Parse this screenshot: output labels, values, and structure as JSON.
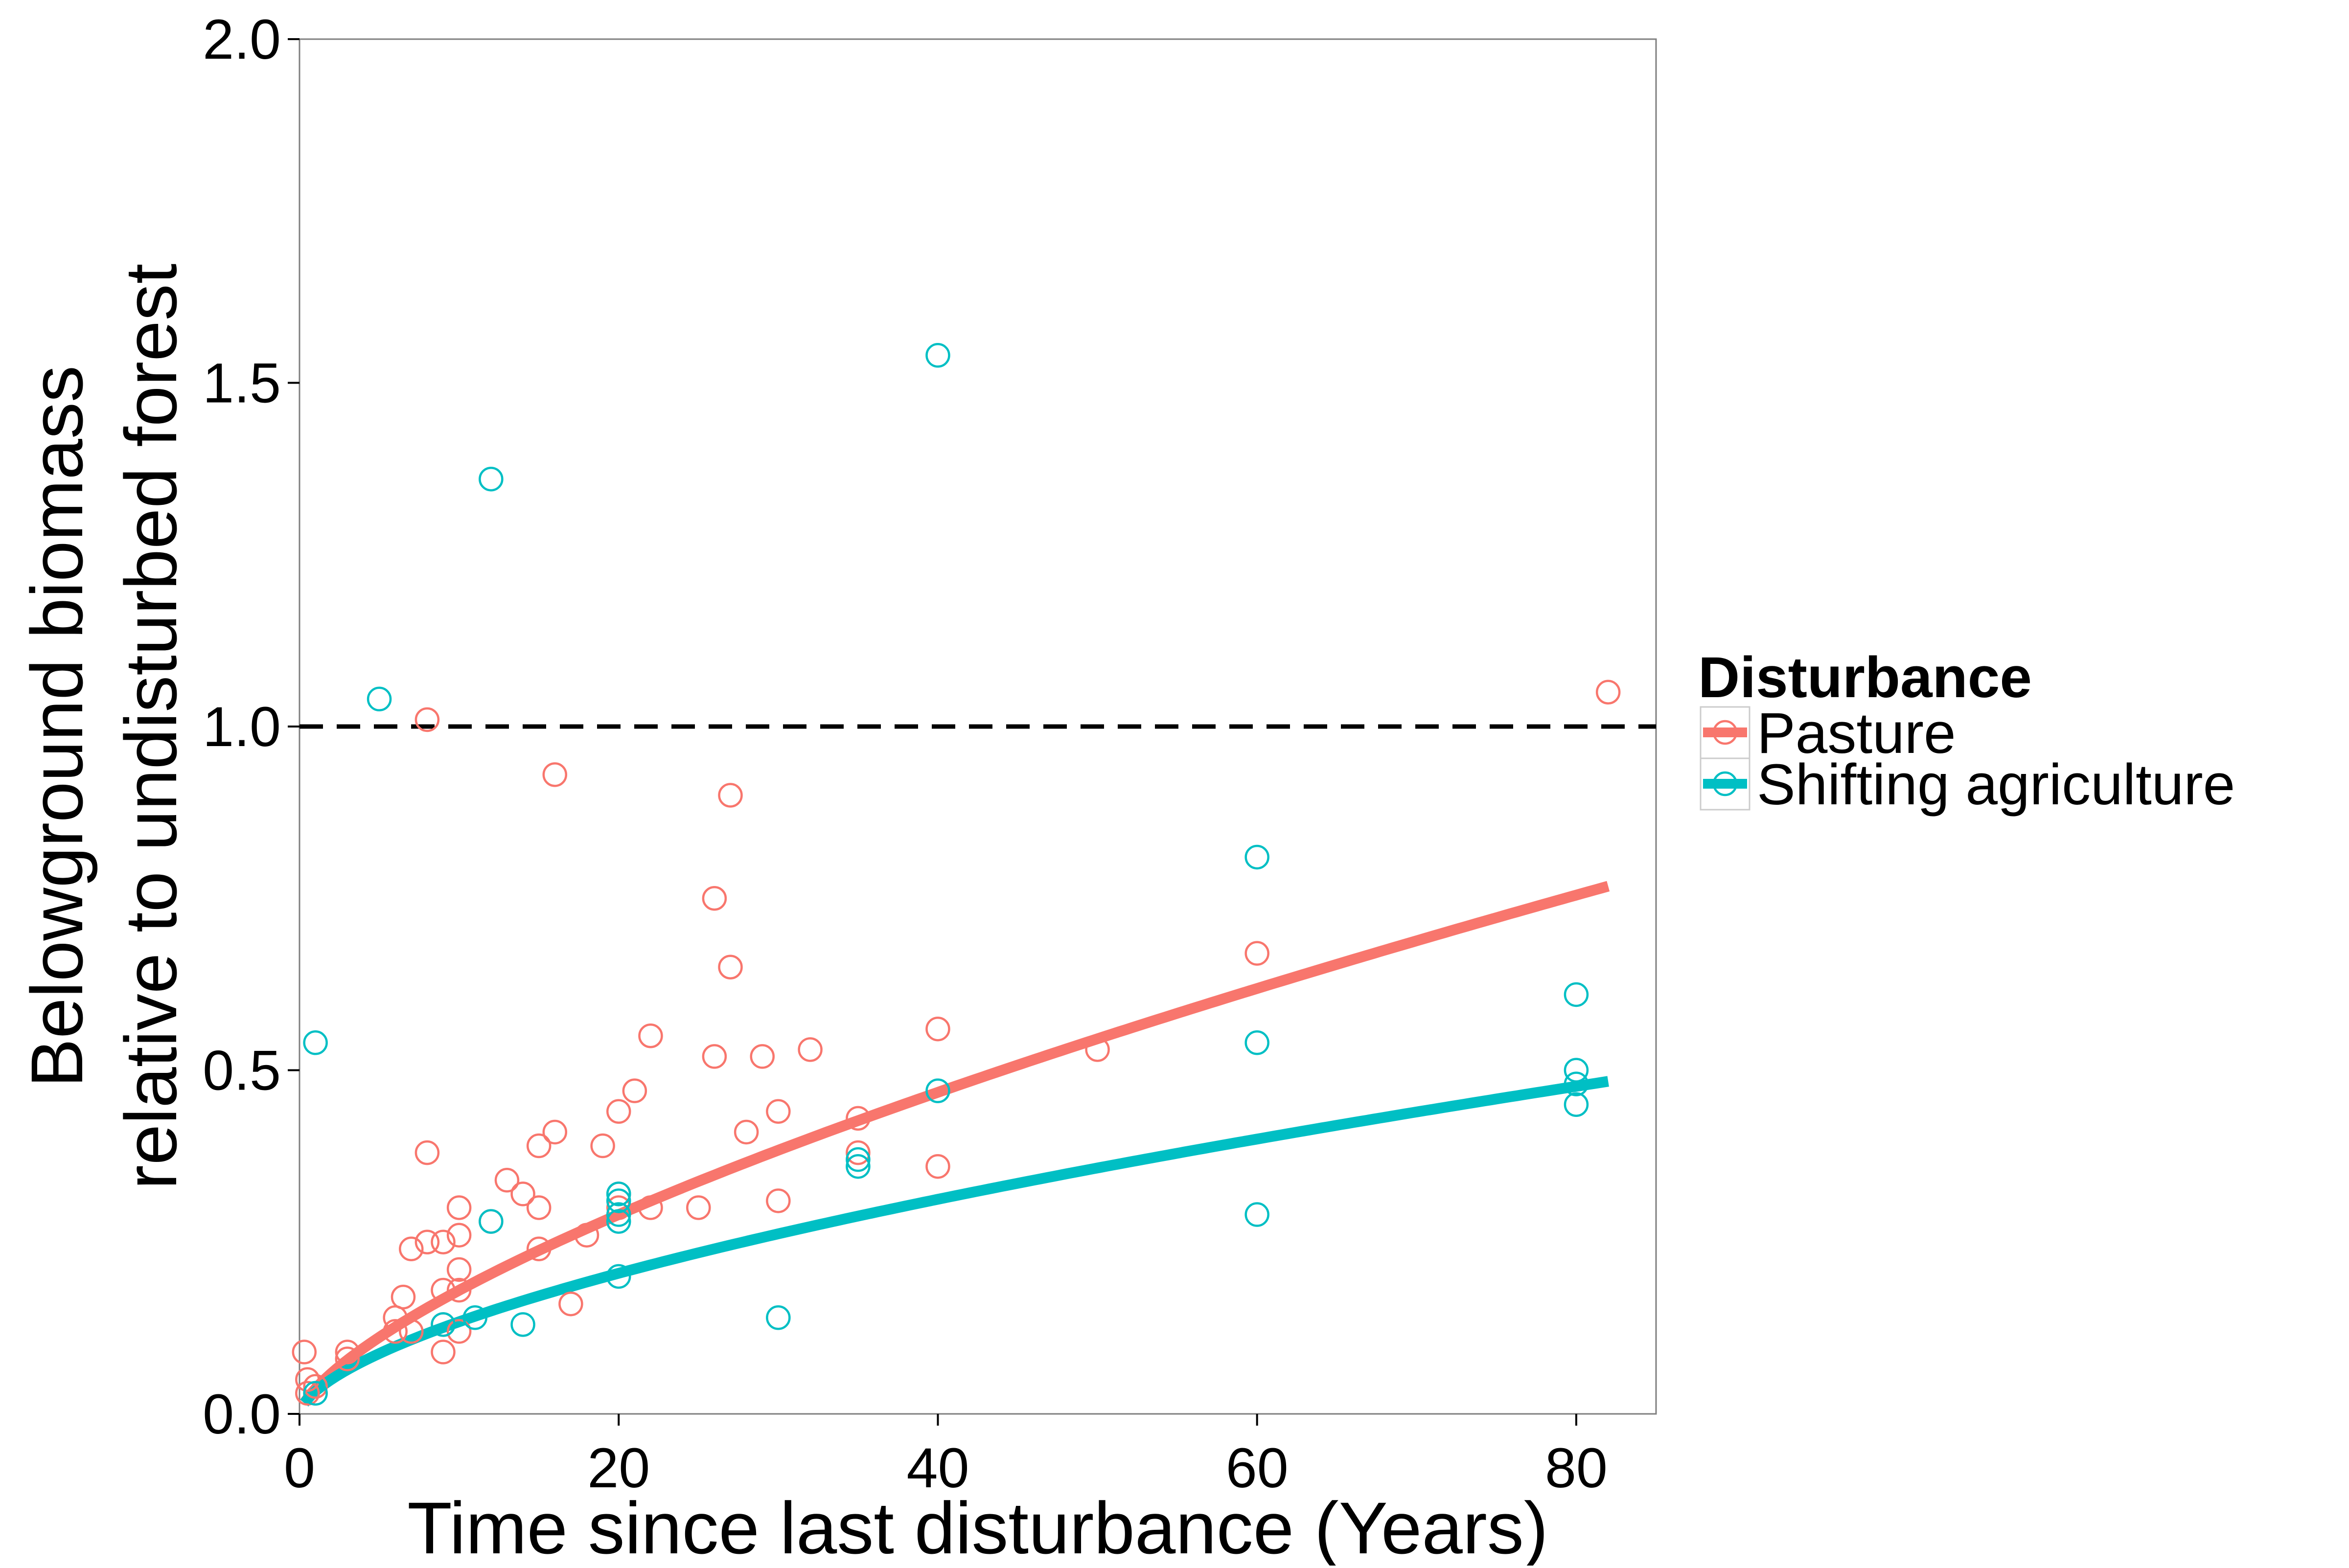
{
  "chart_data": {
    "type": "scatter",
    "title": "",
    "xlabel": "Time since last disturbance (Years)",
    "ylabel_lines": [
      "Belowground biomass",
      "relative to undisturbed forest"
    ],
    "xlim": [
      0,
      85
    ],
    "ylim": [
      0,
      2
    ],
    "x_ticks": [
      0,
      20,
      40,
      60,
      80
    ],
    "x_tick_labels": [
      "0",
      "20",
      "40",
      "60",
      "80"
    ],
    "y_ticks": [
      0,
      0.5,
      1,
      1.5,
      2
    ],
    "y_tick_labels": [
      "0.0",
      "0.5",
      "1.0",
      "1.5",
      "2.0"
    ],
    "grid": false,
    "reference_line": {
      "y": 1.0,
      "style": "dashed",
      "color": "#000000"
    },
    "legend": {
      "title": "Disturbance",
      "placement": "right",
      "entries": [
        "Pasture",
        "Shifting agriculture"
      ]
    },
    "series": [
      {
        "name": "Pasture",
        "color": "#F8766D",
        "points": [
          [
            0.3,
            0.09
          ],
          [
            0.5,
            0.05
          ],
          [
            0.5,
            0.03
          ],
          [
            1,
            0.04
          ],
          [
            3,
            0.08
          ],
          [
            3,
            0.09
          ],
          [
            6,
            0.12
          ],
          [
            6,
            0.14
          ],
          [
            6.5,
            0.17
          ],
          [
            7,
            0.24
          ],
          [
            7,
            0.12
          ],
          [
            8,
            0.25
          ],
          [
            8,
            0.38
          ],
          [
            8,
            1.01
          ],
          [
            9,
            0.25
          ],
          [
            9,
            0.18
          ],
          [
            9,
            0.09
          ],
          [
            9,
            0.13
          ],
          [
            10,
            0.3
          ],
          [
            10,
            0.26
          ],
          [
            10,
            0.21
          ],
          [
            10,
            0.18
          ],
          [
            10,
            0.12
          ],
          [
            12,
            0.28
          ],
          [
            13,
            0.34
          ],
          [
            14,
            0.32
          ],
          [
            15,
            0.39
          ],
          [
            15,
            0.3
          ],
          [
            15,
            0.24
          ],
          [
            16,
            0.41
          ],
          [
            16,
            0.93
          ],
          [
            17,
            0.16
          ],
          [
            18,
            0.26
          ],
          [
            19,
            0.39
          ],
          [
            20,
            0.44
          ],
          [
            20,
            0.32
          ],
          [
            20,
            0.3
          ],
          [
            21,
            0.47
          ],
          [
            22,
            0.55
          ],
          [
            22,
            0.3
          ],
          [
            25,
            0.3
          ],
          [
            26,
            0.52
          ],
          [
            26,
            0.75
          ],
          [
            27,
            0.9
          ],
          [
            27,
            0.65
          ],
          [
            28,
            0.41
          ],
          [
            29,
            0.52
          ],
          [
            30,
            0.44
          ],
          [
            30,
            0.31
          ],
          [
            32,
            0.53
          ],
          [
            35,
            0.43
          ],
          [
            35,
            0.38
          ],
          [
            40,
            0.56
          ],
          [
            40,
            0.36
          ],
          [
            50,
            0.53
          ],
          [
            60,
            0.67
          ],
          [
            82,
            1.05
          ]
        ],
        "fit": {
          "form": "y = a * x^b",
          "a": 0.0367,
          "b": 0.69,
          "x_range": [
            0.3,
            82
          ]
        }
      },
      {
        "name": "Shifting agriculture",
        "color": "#00BFC4",
        "points": [
          [
            1,
            0.54
          ],
          [
            1,
            0.03
          ],
          [
            5,
            1.04
          ],
          [
            9,
            0.13
          ],
          [
            11,
            0.14
          ],
          [
            12,
            1.36
          ],
          [
            12,
            0.28
          ],
          [
            14,
            0.13
          ],
          [
            20,
            0.32
          ],
          [
            20,
            0.31
          ],
          [
            20,
            0.29
          ],
          [
            20,
            0.28
          ],
          [
            20,
            0.2
          ],
          [
            30,
            0.14
          ],
          [
            35,
            0.37
          ],
          [
            35,
            0.36
          ],
          [
            40,
            1.54
          ],
          [
            40,
            0.47
          ],
          [
            60,
            0.81
          ],
          [
            60,
            0.54
          ],
          [
            60,
            0.29
          ],
          [
            80,
            0.61
          ],
          [
            80,
            0.5
          ],
          [
            80,
            0.48
          ],
          [
            80,
            0.45
          ]
        ],
        "fit": {
          "form": "y = a * x^b",
          "a": 0.0329,
          "b": 0.61,
          "x_range": [
            0.3,
            82
          ]
        }
      }
    ]
  }
}
